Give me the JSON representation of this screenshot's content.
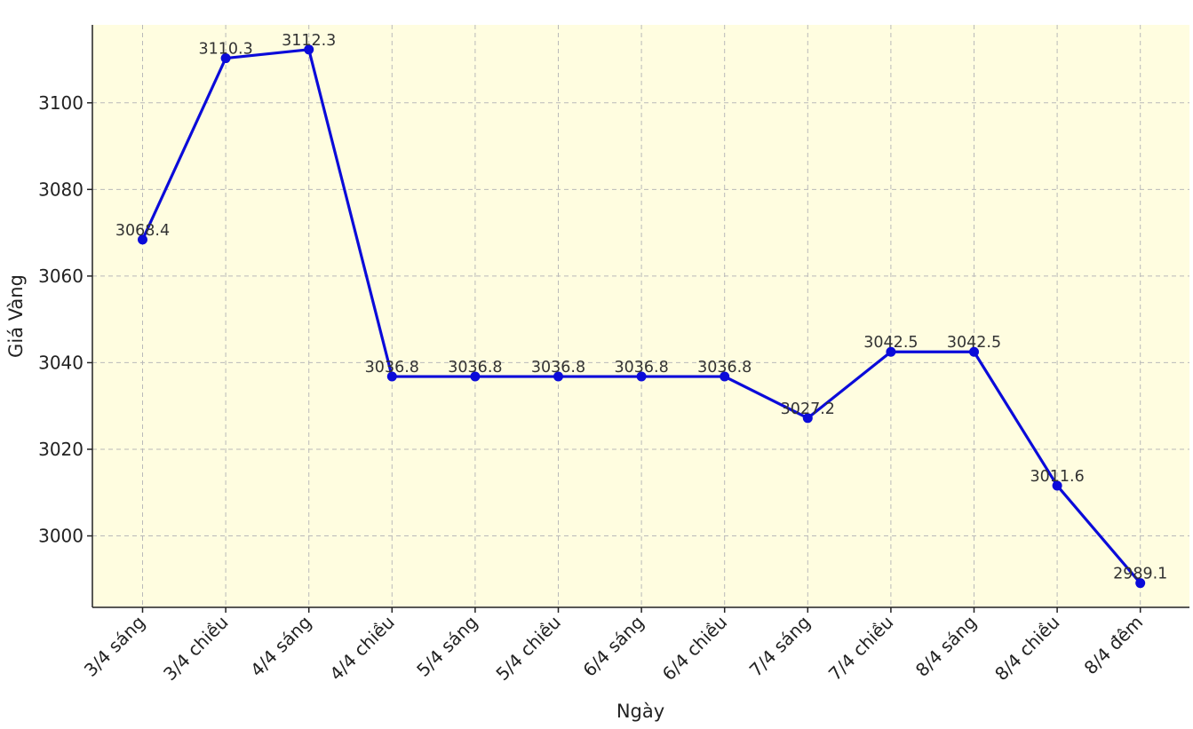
{
  "chart_data": {
    "type": "line",
    "title": "",
    "xlabel": "Ngày",
    "ylabel": "Giá Vàng",
    "categories": [
      "3/4 sáng",
      "3/4 chiều",
      "4/4 sáng",
      "4/4 chiều",
      "5/4 sáng",
      "5/4 chiều",
      "6/4 sáng",
      "6/4 chiều",
      "7/4 sáng",
      "7/4 chiều",
      "8/4 sáng",
      "8/4 chiều",
      "8/4 đêm"
    ],
    "series": [
      {
        "values": [
          3068.4,
          3110.3,
          3112.3,
          3036.8,
          3036.8,
          3036.8,
          3036.8,
          3036.8,
          3027.2,
          3042.5,
          3042.5,
          3011.6,
          2989.1
        ]
      }
    ],
    "data_labels": [
      "3068.4",
      "3110.3",
      "3112.3",
      "3036.8",
      "3036.8",
      "3036.8",
      "3036.8",
      "3036.8",
      "3027.2",
      "3042.5",
      "3042.5",
      "3011.6",
      "2989.1"
    ],
    "yticks": [
      3000,
      3020,
      3040,
      3060,
      3080,
      3100
    ],
    "ylim": [
      2983.5,
      3118.0
    ],
    "grid": true,
    "colors": {
      "line": "#0b0bd9",
      "marker": "#0b0bd9",
      "plot_background": "#fffde0",
      "grid": "#b9b9b9"
    }
  }
}
